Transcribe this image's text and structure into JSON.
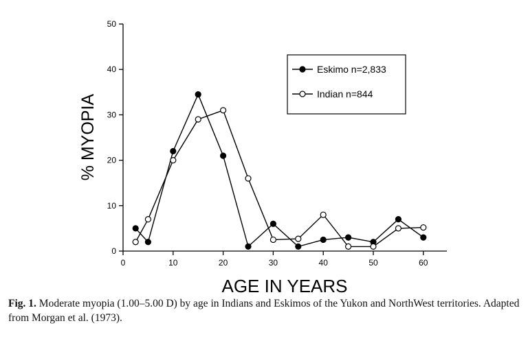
{
  "chart_data": {
    "type": "line",
    "xlabel": "AGE IN YEARS",
    "ylabel": "% MYOPIA",
    "xlim": [
      0,
      70
    ],
    "ylim": [
      0,
      50
    ],
    "xticks": [
      0,
      10,
      20,
      30,
      40,
      50,
      60
    ],
    "yticks": [
      0,
      10,
      20,
      30,
      40,
      50
    ],
    "grid": false,
    "legend_position": "top-right",
    "series": [
      {
        "name": "Eskimo n=2,833",
        "marker": "filled-circle",
        "color": "#000000",
        "x": [
          2.5,
          5,
          10,
          15,
          20,
          25,
          30,
          35,
          40,
          45,
          50,
          55,
          60
        ],
        "y": [
          5,
          2,
          22,
          34.5,
          21,
          1,
          6,
          1,
          2.5,
          3,
          2,
          7,
          3
        ]
      },
      {
        "name": "Indian n=844",
        "marker": "open-circle",
        "color": "#000000",
        "x": [
          2.5,
          5,
          10,
          15,
          20,
          25,
          30,
          35,
          40,
          45,
          50,
          55,
          60
        ],
        "y": [
          2,
          7,
          20,
          29,
          31,
          16,
          2.5,
          2.7,
          8,
          1,
          1,
          5,
          5.2
        ]
      }
    ]
  },
  "caption": {
    "label": "Fig. 1.",
    "text": "Moderate myopia (1.00–5.00 D) by age in Indians and Eskimos of the Yukon and NorthWest territories. Adapted from Morgan et al. (1973)."
  }
}
